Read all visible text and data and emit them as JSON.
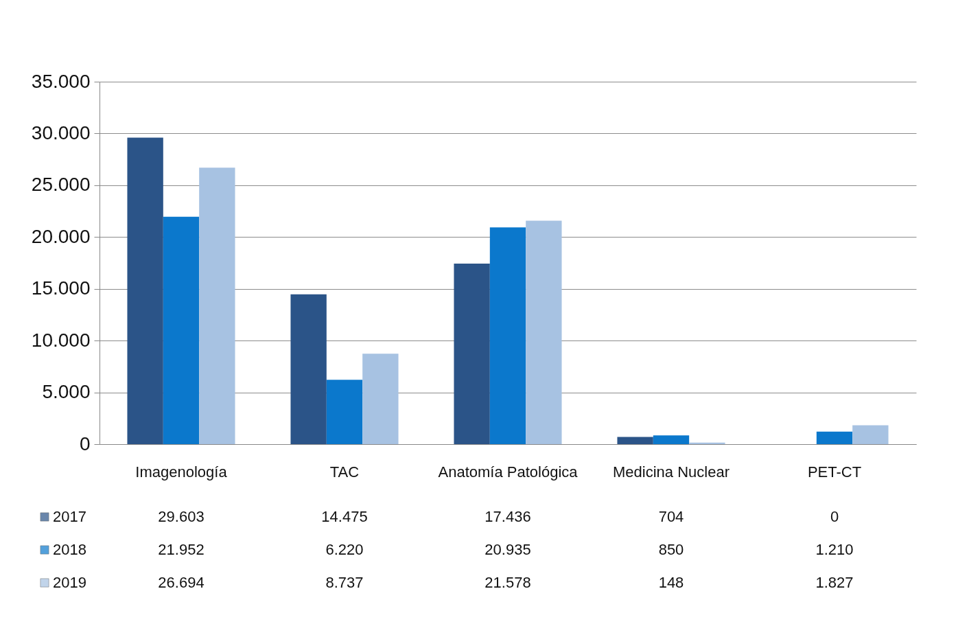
{
  "chart_data": {
    "type": "bar",
    "categories": [
      "Imagenología",
      "TAC",
      "Anatomía Patológica",
      "Medicina Nuclear",
      "PET-CT"
    ],
    "series": [
      {
        "name": "2017",
        "color": "#2b5488",
        "values": [
          29603,
          14475,
          17436,
          704,
          0
        ],
        "value_labels": [
          "29.603",
          "14.475",
          "17.436",
          "704",
          "0"
        ]
      },
      {
        "name": "2018",
        "color": "#0b78cc",
        "values": [
          21952,
          6220,
          20935,
          850,
          1210
        ],
        "value_labels": [
          "21.952",
          "6.220",
          "20.935",
          "850",
          "1.210"
        ]
      },
      {
        "name": "2019",
        "color": "#a7c2e2",
        "values": [
          26694,
          8737,
          21578,
          148,
          1827
        ],
        "value_labels": [
          "26.694",
          "8.737",
          "21.578",
          "148",
          "1.827"
        ]
      }
    ],
    "ylim": [
      0,
      35000
    ],
    "yticks": [
      0,
      {
        "value": 5000,
        "label": "5.000"
      },
      {
        "value": 10000,
        "label": "10.000"
      },
      {
        "value": 15000,
        "label": "15.000"
      },
      {
        "value": 20000,
        "label": "20.000"
      },
      {
        "value": 25000,
        "label": "25.000"
      },
      {
        "value": 30000,
        "label": "30.000"
      },
      {
        "value": 35000,
        "label": "35.000"
      }
    ],
    "grid": "y",
    "legend": "bottom left"
  }
}
